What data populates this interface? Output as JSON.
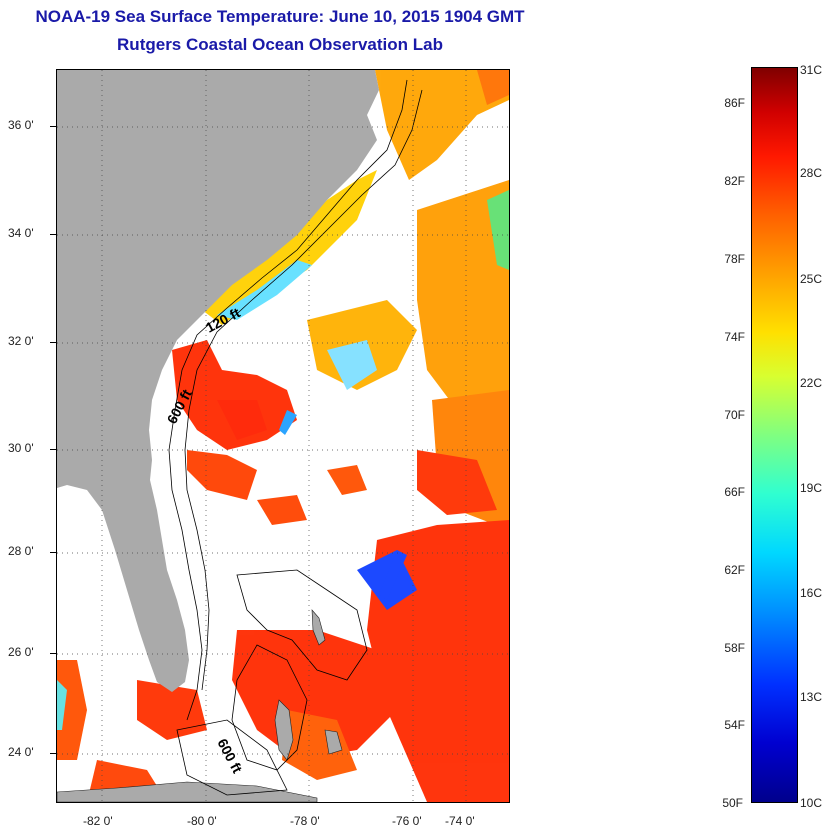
{
  "title": {
    "line1": "NOAA-19 Sea Surface Temperature:  June 10, 2015 1904 GMT",
    "line2": "Rutgers Coastal Ocean Observation Lab"
  },
  "map": {
    "lat_labels": [
      "36 0'",
      "34 0'",
      "32 0'",
      "30 0'",
      "28 0'",
      "26 0'",
      "24 0'"
    ],
    "lon_labels": [
      "-82 0'",
      "-80 0'",
      "-78 0'",
      "-76 0'",
      "-74 0'"
    ],
    "isobath_labels": [
      "120 ft",
      "600 ft",
      "600 ft"
    ],
    "colors": {
      "land": "#aaaaaa",
      "cloud": "#ffffff",
      "warm": "#ff2a00",
      "hot": "#ee1000",
      "mid": "#ff8a00",
      "cool": "#ffc000",
      "green": "#60e060",
      "blue": "#1040ff"
    }
  },
  "colorbar": {
    "f_labels": [
      "86F",
      "82F",
      "78F",
      "74F",
      "70F",
      "66F",
      "62F",
      "58F",
      "54F",
      "50F"
    ],
    "c_labels": [
      "31C",
      "28C",
      "25C",
      "22C",
      "19C",
      "16C",
      "13C",
      "10C"
    ],
    "scale_min_c": 10,
    "scale_max_c": 31
  }
}
